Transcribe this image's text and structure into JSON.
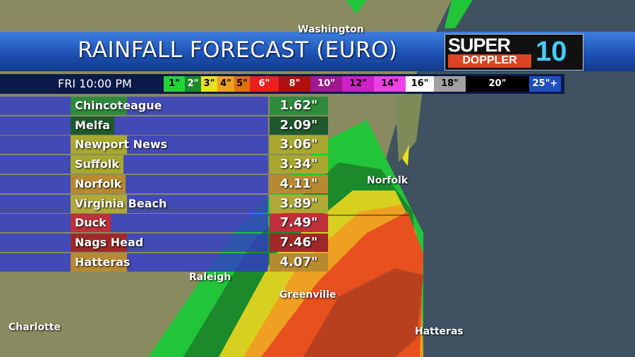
{
  "header": {
    "title": "RAINFALL FORECAST (EURO)",
    "logo": {
      "top": "SUPER",
      "bottom": "DOPPLER",
      "number": "10"
    },
    "time": "FRI 10:00 PM"
  },
  "legend": [
    {
      "label": "1\"",
      "color": "#22d43a"
    },
    {
      "label": "2\"",
      "color": "#1a8a2a"
    },
    {
      "label": "3\"",
      "color": "#e8e020"
    },
    {
      "label": "4\"",
      "color": "#f0a020"
    },
    {
      "label": "5\"",
      "color": "#e07010"
    },
    {
      "label": "6\"",
      "color": "#e82020"
    },
    {
      "label": "8\"",
      "color": "#b01010"
    },
    {
      "label": "10\"",
      "color": "#a01890"
    },
    {
      "label": "12\"",
      "color": "#d020c8"
    },
    {
      "label": "14\"",
      "color": "#f040e8"
    },
    {
      "label": "16\"",
      "color": "#ffffff"
    },
    {
      "label": "18\"",
      "color": "#a0a0a0"
    },
    {
      "label": "20\"",
      "color": "#000000"
    },
    {
      "label": "25\"+",
      "color": "#2050c0"
    }
  ],
  "table": {
    "rows": [
      {
        "city": "Chincoteague",
        "value": "1.62\"",
        "color": "#2e8b3e"
      },
      {
        "city": "Melfa",
        "value": "2.09\"",
        "color": "#1f5a2c"
      },
      {
        "city": "Newport News",
        "value": "3.06\"",
        "color": "#a8a830"
      },
      {
        "city": "Suffolk",
        "value": "3.34\"",
        "color": "#a8a830"
      },
      {
        "city": "Norfolk",
        "value": "4.11\"",
        "color": "#b88a30"
      },
      {
        "city": "Virginia Beach",
        "value": "3.89\"",
        "color": "#b0a838"
      },
      {
        "city": "Duck",
        "value": "7.49\"",
        "color": "#c0303a"
      },
      {
        "city": "Nags Head",
        "value": "7.46\"",
        "color": "#a02828"
      },
      {
        "city": "Hatteras",
        "value": "4.07\"",
        "color": "#b88a30"
      }
    ]
  },
  "map_labels": [
    {
      "text": "Washington"
    },
    {
      "text": "Norfolk"
    },
    {
      "text": "Raleigh"
    },
    {
      "text": "Greenville"
    },
    {
      "text": "Charlotte"
    },
    {
      "text": "Hatteras"
    }
  ]
}
